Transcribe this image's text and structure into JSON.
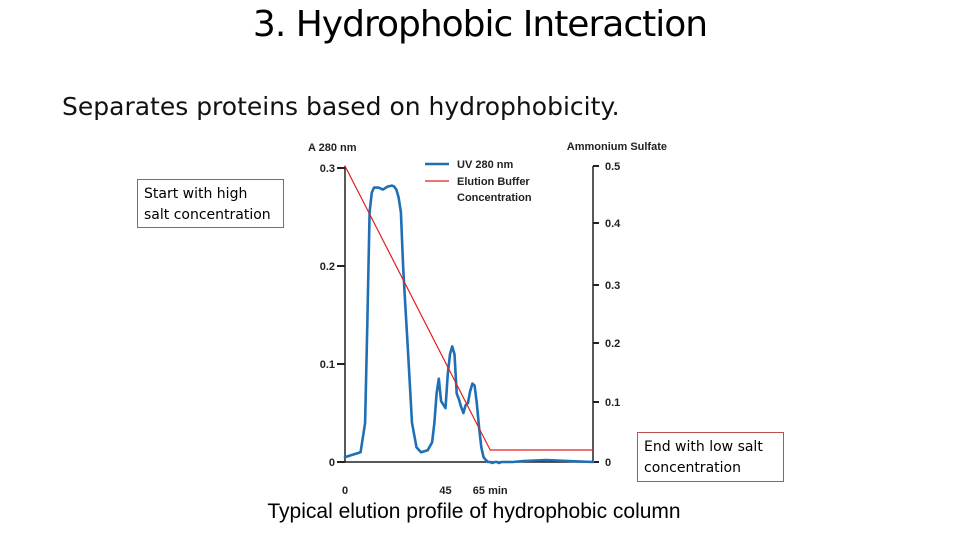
{
  "slide": {
    "title": "3. Hydrophobic Interaction",
    "subtitle": "Separates proteins based on hydrophobicity.",
    "callout_start": "Start with high salt concentration",
    "callout_end": "End with low salt concentration",
    "caption": "Typical elution profile of hydrophobic column"
  },
  "chart_data": {
    "type": "line",
    "title": "",
    "y_left_label": "A 280 nm",
    "y_right_label": "Ammonium Sulfate",
    "x_unit": "min",
    "x_ticks": [
      0,
      45,
      65
    ],
    "x_tick_labels": [
      "0",
      "45",
      "65 min"
    ],
    "y_left_ticks": [
      0,
      0.1,
      0.2,
      0.3
    ],
    "y_left_tick_labels": [
      "0",
      "0.1",
      "0.2",
      "0.3"
    ],
    "y_right_ticks": [
      0,
      0.1,
      0.2,
      0.3,
      0.4,
      0.5
    ],
    "y_right_tick_labels": [
      "0",
      "0.1",
      "0.2",
      "0.3",
      "0.4",
      "0.5"
    ],
    "xlim": [
      0,
      111
    ],
    "ylim_left": [
      0,
      0.3
    ],
    "ylim_right": [
      0,
      0.5
    ],
    "legend_position": "top-center",
    "series": [
      {
        "name": "UV 280 nm",
        "color": "#1f6fb5",
        "axis": "left",
        "x": [
          0,
          7,
          9,
          10,
          11,
          12,
          13,
          15,
          17,
          19,
          21,
          22,
          23,
          24,
          25,
          26,
          27,
          28,
          30,
          32,
          34,
          37,
          39,
          40,
          41,
          42,
          43,
          45,
          46,
          47,
          48,
          49,
          50,
          51,
          52,
          53,
          54,
          55,
          56,
          57,
          58,
          59,
          60,
          61,
          62,
          63,
          64,
          65,
          66,
          67,
          68,
          69,
          70,
          72,
          75,
          80,
          90,
          100,
          111
        ],
        "y": [
          0.005,
          0.01,
          0.04,
          0.14,
          0.255,
          0.275,
          0.28,
          0.28,
          0.278,
          0.281,
          0.282,
          0.281,
          0.278,
          0.27,
          0.255,
          0.2,
          0.16,
          0.12,
          0.04,
          0.015,
          0.01,
          0.012,
          0.02,
          0.04,
          0.07,
          0.085,
          0.062,
          0.055,
          0.09,
          0.11,
          0.118,
          0.11,
          0.07,
          0.064,
          0.056,
          0.05,
          0.058,
          0.06,
          0.072,
          0.08,
          0.078,
          0.06,
          0.035,
          0.015,
          0.005,
          0.002,
          0.0,
          0.0,
          -0.001,
          0.0,
          0.0,
          -0.001,
          0.0,
          0.0,
          0.0,
          0.001,
          0.002,
          0.001,
          0.0
        ]
      },
      {
        "name": "Elution Buffer Concentration",
        "color": "#e02020",
        "axis": "right",
        "x": [
          0,
          65,
          111
        ],
        "y": [
          0.5,
          0.02,
          0.02
        ]
      }
    ]
  }
}
